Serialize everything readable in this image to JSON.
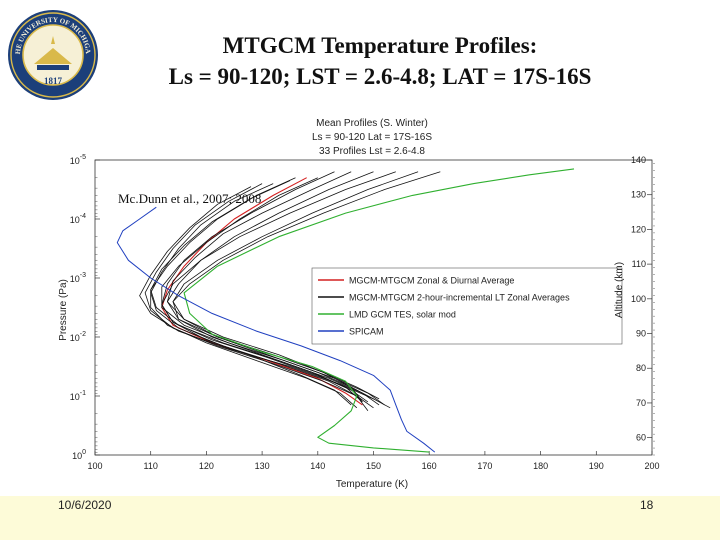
{
  "slide": {
    "title_line1": "MTGCM  Temperature Profiles:",
    "title_line2": "Ls = 90-120; LST = 2.6-4.8; LAT = 17S-16S",
    "date": "10/6/2020",
    "page_number": "18",
    "seal_text": "THE UNIVERSITY OF MICHIGAN 1817",
    "colors": {
      "seal_blue": "#1c3f7a",
      "seal_gold": "#d9b94a",
      "footer_band": "#fdfbd8"
    }
  },
  "chart_data": {
    "type": "line",
    "title_lines": [
      "Mean Profiles (S. Winter)",
      "Ls = 90-120    Lat = 17S-16S",
      "33 Profiles    Lst = 2.6-4.8"
    ],
    "annotation": "Mc.Dunn et al., 2007; 2008",
    "xlabel": "Temperature (K)",
    "ylabel": "Pressure (Pa)",
    "ylabel_right": "Altitude (km)",
    "xlim": [
      100,
      200
    ],
    "ylim_log10": [
      -5,
      0
    ],
    "yscale": "log",
    "xticks": [
      "100",
      "110",
      "120",
      "130",
      "140",
      "150",
      "160",
      "170",
      "180",
      "190",
      "200"
    ],
    "yticks": [
      {
        "base": "10",
        "exp": "-5",
        "log": -5
      },
      {
        "base": "10",
        "exp": "-4",
        "log": -4
      },
      {
        "base": "10",
        "exp": "-3",
        "log": -3
      },
      {
        "base": "10",
        "exp": "-2",
        "log": -2
      },
      {
        "base": "10",
        "exp": "-1",
        "log": -1
      },
      {
        "base": "10",
        "exp": "0",
        "log": 0
      }
    ],
    "alt_ticks": [
      "140",
      "130",
      "120",
      "110",
      "100",
      "90",
      "80",
      "70",
      "60"
    ],
    "alt_range": [
      55,
      140
    ],
    "legend_position": "center-right",
    "legend": [
      {
        "label": "MGCM-MTGCM Zonal & Diurnal Average",
        "color": "#d42020"
      },
      {
        "label": "MGCM-MTGCM 2-hour-incremental LT Zonal Averages",
        "color": "#111111"
      },
      {
        "label": "LMD GCM    TES, solar mod",
        "color": "#30b030"
      },
      {
        "label": "SPICAM",
        "color": "#2040c0"
      }
    ],
    "series": [
      {
        "color": "#d42020",
        "width": 1.1,
        "points": [
          [
            138,
            -4.7
          ],
          [
            132,
            -4.4
          ],
          [
            125,
            -4.0
          ],
          [
            120,
            -3.6
          ],
          [
            116,
            -3.2
          ],
          [
            113,
            -2.8
          ],
          [
            112,
            -2.5
          ],
          [
            114,
            -2.2
          ],
          [
            121,
            -1.9
          ],
          [
            131,
            -1.6
          ],
          [
            140,
            -1.3
          ],
          [
            145,
            -1.05
          ],
          [
            148,
            -0.85
          ]
        ]
      },
      {
        "color": "#111111",
        "width": 0.8,
        "points": [
          [
            143,
            -4.8
          ],
          [
            136,
            -4.5
          ],
          [
            128,
            -4.1
          ],
          [
            121,
            -3.7
          ],
          [
            116,
            -3.3
          ],
          [
            113,
            -2.9
          ],
          [
            112,
            -2.55
          ],
          [
            114,
            -2.25
          ],
          [
            121,
            -1.95
          ],
          [
            131,
            -1.65
          ],
          [
            140,
            -1.35
          ],
          [
            146,
            -1.1
          ],
          [
            149,
            -0.9
          ]
        ]
      },
      {
        "color": "#111111",
        "width": 0.8,
        "points": [
          [
            136,
            -4.7
          ],
          [
            129,
            -4.4
          ],
          [
            122,
            -4.0
          ],
          [
            117,
            -3.6
          ],
          [
            113,
            -3.2
          ],
          [
            110,
            -2.8
          ],
          [
            110,
            -2.5
          ],
          [
            113,
            -2.2
          ],
          [
            120,
            -1.9
          ],
          [
            129,
            -1.6
          ],
          [
            138,
            -1.3
          ],
          [
            144,
            -1.05
          ],
          [
            147,
            -0.8
          ]
        ]
      },
      {
        "color": "#111111",
        "width": 0.8,
        "points": [
          [
            150,
            -4.8
          ],
          [
            142,
            -4.5
          ],
          [
            133,
            -4.1
          ],
          [
            125,
            -3.7
          ],
          [
            119,
            -3.3
          ],
          [
            115,
            -2.9
          ],
          [
            113,
            -2.6
          ],
          [
            115,
            -2.3
          ],
          [
            122,
            -2.0
          ],
          [
            132,
            -1.7
          ],
          [
            141,
            -1.4
          ],
          [
            147,
            -1.15
          ],
          [
            151,
            -0.95
          ]
        ]
      },
      {
        "color": "#111111",
        "width": 0.8,
        "points": [
          [
            132,
            -4.6
          ],
          [
            125,
            -4.3
          ],
          [
            119,
            -3.9
          ],
          [
            115,
            -3.5
          ],
          [
            112,
            -3.1
          ],
          [
            110,
            -2.75
          ],
          [
            111,
            -2.45
          ],
          [
            115,
            -2.15
          ],
          [
            123,
            -1.85
          ],
          [
            133,
            -1.55
          ],
          [
            142,
            -1.25
          ],
          [
            147,
            -1.0
          ],
          [
            149,
            -0.75
          ]
        ]
      },
      {
        "color": "#111111",
        "width": 0.8,
        "points": [
          [
            146,
            -4.8
          ],
          [
            139,
            -4.5
          ],
          [
            130,
            -4.1
          ],
          [
            123,
            -3.75
          ],
          [
            118,
            -3.35
          ],
          [
            114,
            -2.95
          ],
          [
            113,
            -2.6
          ],
          [
            116,
            -2.3
          ],
          [
            123,
            -2.0
          ],
          [
            133,
            -1.7
          ],
          [
            141,
            -1.4
          ],
          [
            146,
            -1.15
          ],
          [
            148,
            -0.9
          ]
        ]
      },
      {
        "color": "#111111",
        "width": 0.8,
        "points": [
          [
            140,
            -4.7
          ],
          [
            133,
            -4.4
          ],
          [
            126,
            -4.0
          ],
          [
            120,
            -3.6
          ],
          [
            115,
            -3.2
          ],
          [
            112,
            -2.85
          ],
          [
            112,
            -2.5
          ],
          [
            116,
            -2.2
          ],
          [
            124,
            -1.9
          ],
          [
            134,
            -1.6
          ],
          [
            143,
            -1.3
          ],
          [
            149,
            -1.05
          ],
          [
            152,
            -0.85
          ]
        ]
      },
      {
        "color": "#111111",
        "width": 0.8,
        "points": [
          [
            154,
            -4.8
          ],
          [
            145,
            -4.5
          ],
          [
            135,
            -4.1
          ],
          [
            126,
            -3.7
          ],
          [
            119,
            -3.3
          ],
          [
            114,
            -2.9
          ],
          [
            112,
            -2.55
          ],
          [
            114,
            -2.25
          ],
          [
            120,
            -1.95
          ],
          [
            129,
            -1.65
          ],
          [
            137,
            -1.35
          ],
          [
            143,
            -1.1
          ],
          [
            146,
            -0.85
          ]
        ]
      },
      {
        "color": "#111111",
        "width": 0.8,
        "points": [
          [
            130,
            -4.6
          ],
          [
            124,
            -4.3
          ],
          [
            118,
            -3.9
          ],
          [
            114,
            -3.5
          ],
          [
            111,
            -3.1
          ],
          [
            109,
            -2.75
          ],
          [
            110,
            -2.45
          ],
          [
            114,
            -2.15
          ],
          [
            122,
            -1.85
          ],
          [
            132,
            -1.55
          ],
          [
            141,
            -1.25
          ],
          [
            147,
            -1.0
          ],
          [
            150,
            -0.8
          ]
        ]
      },
      {
        "color": "#111111",
        "width": 0.8,
        "points": [
          [
            158,
            -4.8
          ],
          [
            149,
            -4.5
          ],
          [
            139,
            -4.1
          ],
          [
            130,
            -3.7
          ],
          [
            122,
            -3.3
          ],
          [
            116,
            -2.9
          ],
          [
            114,
            -2.6
          ],
          [
            116,
            -2.3
          ],
          [
            122,
            -2.0
          ],
          [
            131,
            -1.7
          ],
          [
            140,
            -1.4
          ],
          [
            146,
            -1.15
          ],
          [
            150,
            -0.95
          ]
        ]
      },
      {
        "color": "#111111",
        "width": 0.8,
        "points": [
          [
            135,
            -4.65
          ],
          [
            128,
            -4.35
          ],
          [
            121,
            -3.95
          ],
          [
            116,
            -3.55
          ],
          [
            112,
            -3.15
          ],
          [
            110,
            -2.8
          ],
          [
            111,
            -2.5
          ],
          [
            115,
            -2.2
          ],
          [
            123,
            -1.9
          ],
          [
            133,
            -1.6
          ],
          [
            142,
            -1.3
          ],
          [
            148,
            -1.05
          ],
          [
            151,
            -0.85
          ]
        ]
      },
      {
        "color": "#111111",
        "width": 0.8,
        "points": [
          [
            162,
            -4.8
          ],
          [
            152,
            -4.5
          ],
          [
            141,
            -4.1
          ],
          [
            131,
            -3.7
          ],
          [
            123,
            -3.3
          ],
          [
            117,
            -2.9
          ],
          [
            114,
            -2.6
          ],
          [
            115,
            -2.3
          ],
          [
            121,
            -2.0
          ],
          [
            130,
            -1.7
          ],
          [
            139,
            -1.4
          ],
          [
            145,
            -1.15
          ],
          [
            148,
            -0.9
          ]
        ]
      },
      {
        "color": "#111111",
        "width": 0.8,
        "points": [
          [
            128,
            -4.55
          ],
          [
            122,
            -4.25
          ],
          [
            117,
            -3.85
          ],
          [
            113,
            -3.45
          ],
          [
            110,
            -3.05
          ],
          [
            108,
            -2.7
          ],
          [
            110,
            -2.4
          ],
          [
            115,
            -2.1
          ],
          [
            124,
            -1.8
          ],
          [
            135,
            -1.5
          ],
          [
            144,
            -1.2
          ],
          [
            150,
            -0.95
          ],
          [
            153,
            -0.8
          ]
        ]
      },
      {
        "color": "#30b030",
        "width": 1.1,
        "points": [
          [
            186,
            -4.85
          ],
          [
            178,
            -4.75
          ],
          [
            168,
            -4.6
          ],
          [
            157,
            -4.4
          ],
          [
            145,
            -4.1
          ],
          [
            133,
            -3.7
          ],
          [
            122,
            -3.2
          ],
          [
            116,
            -2.75
          ],
          [
            117,
            -2.4
          ],
          [
            121,
            -2.05
          ],
          [
            130,
            -1.75
          ],
          [
            139,
            -1.5
          ],
          [
            145,
            -1.25
          ],
          [
            147,
            -1.0
          ],
          [
            146,
            -0.75
          ],
          [
            143,
            -0.5
          ],
          [
            140,
            -0.3
          ],
          [
            142,
            -0.2
          ],
          [
            150,
            -0.12
          ],
          [
            160,
            -0.05
          ]
        ]
      },
      {
        "color": "#2040c0",
        "width": 1.0,
        "points": [
          [
            111,
            -4.2
          ],
          [
            108,
            -4.0
          ],
          [
            105,
            -3.8
          ],
          [
            104,
            -3.6
          ],
          [
            106,
            -3.3
          ],
          [
            110,
            -3.0
          ],
          [
            115,
            -2.7
          ],
          [
            121,
            -2.4
          ],
          [
            129,
            -2.1
          ],
          [
            137,
            -1.85
          ],
          [
            144,
            -1.6
          ],
          [
            150,
            -1.35
          ],
          [
            153,
            -1.1
          ],
          [
            154,
            -0.85
          ],
          [
            155,
            -0.6
          ],
          [
            156,
            -0.4
          ],
          [
            159,
            -0.2
          ],
          [
            161,
            -0.05
          ]
        ]
      }
    ]
  }
}
